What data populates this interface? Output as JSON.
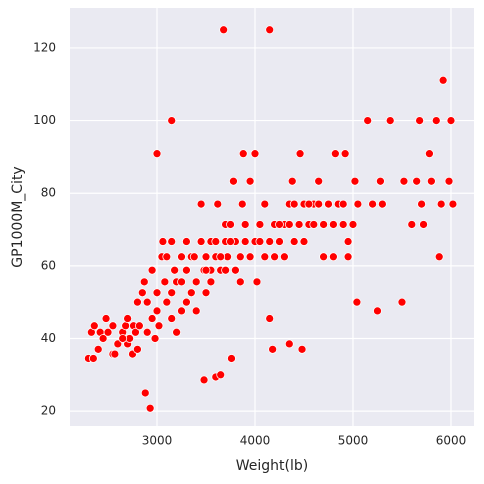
{
  "chart_data": {
    "type": "scatter",
    "x_label": "Weight(lb)",
    "y_label": "GP1000M_City",
    "color": "#ff0000",
    "grid": true,
    "xlim": [
      2112,
      6235
    ],
    "ylim": [
      15.9,
      131
    ],
    "xticks": [
      3000,
      4000,
      5000,
      6000
    ],
    "yticks": [
      20,
      40,
      60,
      80,
      100,
      120
    ],
    "x": [
      2300,
      2350,
      2330,
      2360,
      2400,
      2420,
      2450,
      2480,
      2500,
      2550,
      2550,
      2570,
      2600,
      2650,
      2680,
      2700,
      2700,
      2720,
      2750,
      2760,
      2780,
      2800,
      2800,
      2820,
      2850,
      2870,
      2880,
      2900,
      2900,
      2930,
      2950,
      2950,
      2980,
      3000,
      3000,
      3000,
      3050,
      3060,
      3080,
      3100,
      3100,
      3150,
      3150,
      3150,
      3180,
      3200,
      3200,
      3250,
      3250,
      3300,
      3300,
      3350,
      3350,
      3400,
      3400,
      3450,
      3450,
      3480,
      3480,
      3500,
      3500,
      3550,
      3550,
      3600,
      3600,
      3620,
      3650,
      3650,
      3680,
      3700,
      3700,
      3720,
      3750,
      3760,
      3780,
      3800,
      3800,
      3850,
      3850,
      3870,
      3880,
      3900,
      3950,
      3950,
      4000,
      4000,
      4020,
      4050,
      4100,
      4100,
      4150,
      4150,
      4150,
      4180,
      4200,
      4200,
      4250,
      4300,
      4300,
      4350,
      4350,
      4380,
      4400,
      4450,
      4460,
      4480,
      4500,
      4500,
      4550,
      4600,
      4650,
      4700,
      4700,
      4750,
      4800,
      4820,
      4850,
      4900,
      4920,
      4950,
      4950,
      5000,
      5020,
      5040,
      5050,
      5150,
      5200,
      5250,
      5280,
      5300,
      5380,
      5500,
      5520,
      5600,
      5650,
      5680,
      5700,
      5720,
      5780,
      5800,
      5850,
      5880,
      5900,
      5920,
      5980,
      6000,
      6020,
      3250,
      3300,
      3550,
      2650,
      3020,
      3150,
      3380,
      3700,
      3450,
      3600,
      3900,
      4050,
      4250,
      4400,
      4550,
      4650,
      4800,
      3750,
      3500,
      3650,
      4350,
      4600,
      4750,
      4900
    ],
    "values": [
      34.5,
      34.5,
      41.7,
      43.5,
      37,
      41.7,
      40,
      45.5,
      41.7,
      35.7,
      43.5,
      35.7,
      38.5,
      41.7,
      43.5,
      45.5,
      38.5,
      40,
      35.7,
      43.5,
      41.7,
      37,
      50,
      43.5,
      52.6,
      55.6,
      25,
      41.7,
      50,
      20.8,
      45.5,
      58.8,
      40,
      90.9,
      52.6,
      47.6,
      62.5,
      66.7,
      55.6,
      50,
      62.5,
      66.7,
      100,
      45.5,
      58.8,
      41.7,
      55.6,
      62.5,
      47.6,
      58.8,
      66.7,
      52.6,
      62.5,
      55.6,
      47.6,
      77,
      66.7,
      58.8,
      28.6,
      62.5,
      52.6,
      66.7,
      55.6,
      62.5,
      29.4,
      77,
      58.8,
      30,
      125,
      66.7,
      71.4,
      62.5,
      71.4,
      34.5,
      83.3,
      66.7,
      58.8,
      62.5,
      55.6,
      77,
      90.9,
      66.7,
      62.5,
      83.3,
      90.9,
      66.7,
      55.6,
      71.4,
      62.5,
      77,
      125,
      45.5,
      66.7,
      37,
      71.4,
      62.5,
      66.7,
      71.4,
      62.5,
      38.5,
      77,
      83.3,
      66.7,
      71.4,
      90.9,
      37,
      77,
      66.7,
      71.4,
      77,
      83.3,
      71.4,
      62.5,
      77,
      62.5,
      90.9,
      77,
      71.4,
      90.9,
      66.7,
      62.5,
      71.4,
      83.3,
      50,
      77,
      100,
      77,
      47.6,
      83.3,
      77,
      100,
      50,
      83.3,
      71.4,
      83.3,
      100,
      77,
      71.4,
      90.9,
      83.3,
      100,
      62.5,
      77,
      111.1,
      83.3,
      100,
      77,
      55.6,
      50,
      58.8,
      40,
      43.5,
      52.6,
      62.5,
      58.8,
      66.7,
      66.7,
      71.4,
      66.7,
      71.4,
      77,
      77,
      77,
      71.4,
      66.7,
      58.8,
      62.5,
      71.4,
      71.4,
      77,
      77
    ]
  }
}
